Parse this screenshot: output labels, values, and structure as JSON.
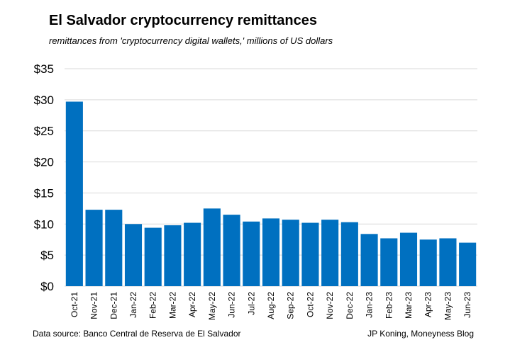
{
  "chart_data": {
    "type": "bar",
    "title": "El Salvador cryptocurrency remittances",
    "subtitle": "remittances from 'cryptocurrency digital wallets,' millions of US dollars",
    "categories": [
      "Oct-21",
      "Nov-21",
      "Dec-21",
      "Jan-22",
      "Feb-22",
      "Mar-22",
      "Apr-22",
      "May-22",
      "Jun-22",
      "Jul-22",
      "Aug-22",
      "Sep-22",
      "Oct-22",
      "Nov-22",
      "Dec-22",
      "Jan-23",
      "Feb-23",
      "Mar-23",
      "Apr-23",
      "May-23",
      "Jun-23"
    ],
    "values": [
      29.7,
      12.3,
      12.3,
      10.0,
      9.4,
      9.8,
      10.2,
      12.5,
      11.5,
      10.4,
      10.9,
      10.7,
      10.2,
      10.7,
      10.3,
      8.4,
      7.7,
      8.6,
      7.5,
      7.7,
      7.0
    ],
    "ylim": [
      0,
      35
    ],
    "yticks": [
      0,
      5,
      10,
      15,
      20,
      25,
      30,
      35
    ],
    "ytick_labels": [
      "$0",
      "$5",
      "$10",
      "$15",
      "$20",
      "$25",
      "$30",
      "$35"
    ],
    "xlabel": "",
    "ylabel": "",
    "grid": true,
    "bar_color": "#0070C0",
    "grid_color": "#d9d9d9"
  },
  "footer": {
    "source": "Data source: Banco Central de Reserva de El Salvador",
    "credit": "JP Koning, Moneyness Blog"
  }
}
